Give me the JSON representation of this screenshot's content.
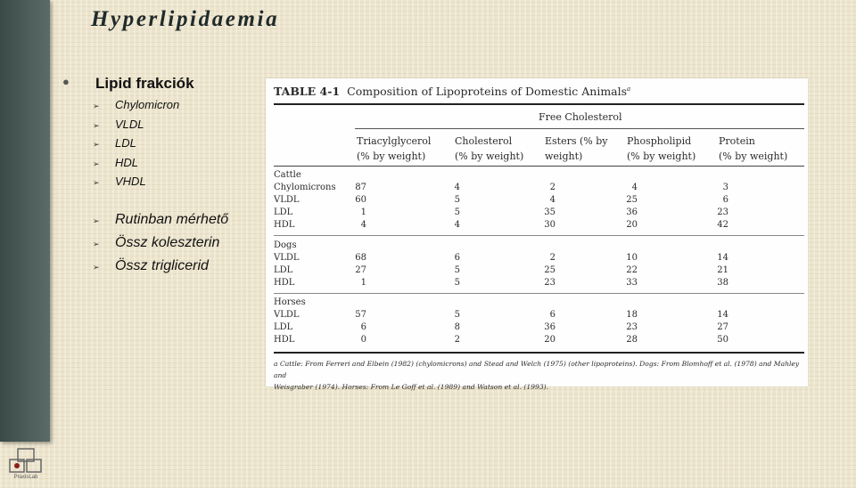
{
  "slide": {
    "title": "Hyperlipidaemia",
    "main_bullet": "Lipid frakciók",
    "sub_items": [
      "Chylomicron",
      "VLDL",
      "LDL",
      "HDL",
      "VHDL"
    ],
    "routine_items": [
      "Rutinban mérhető",
      "Össz koleszterin",
      "Össz triglicerid"
    ],
    "logo_text": "PraxisLab"
  },
  "table": {
    "number": "TABLE 4-1",
    "caption": "Composition of Lipoproteins of Domestic Animals",
    "caption_mark": "a",
    "free_cholesterol_header": "Free Cholesterol",
    "columns": [
      [
        "Triacylglycerol",
        "(% by weight)"
      ],
      [
        "Cholesterol",
        "(% by weight)"
      ],
      [
        "Esters (% by",
        "weight)"
      ],
      [
        "Phospholipid",
        "(% by weight)"
      ],
      [
        "Protein",
        "(% by weight)"
      ]
    ],
    "groups": [
      {
        "name": "Cattle",
        "rows": [
          {
            "label": "Chylomicrons",
            "values": [
              "87",
              "4",
              "2",
              "4",
              "3"
            ]
          },
          {
            "label": "VLDL",
            "values": [
              "60",
              "5",
              "4",
              "25",
              "6"
            ]
          },
          {
            "label": "LDL",
            "values": [
              "1",
              "5",
              "35",
              "36",
              "23"
            ]
          },
          {
            "label": "HDL",
            "values": [
              "4",
              "4",
              "30",
              "20",
              "42"
            ]
          }
        ]
      },
      {
        "name": "Dogs",
        "rows": [
          {
            "label": "VLDL",
            "values": [
              "68",
              "6",
              "2",
              "10",
              "14"
            ]
          },
          {
            "label": "LDL",
            "values": [
              "27",
              "5",
              "25",
              "22",
              "21"
            ]
          },
          {
            "label": "HDL",
            "values": [
              "1",
              "5",
              "23",
              "33",
              "38"
            ]
          }
        ]
      },
      {
        "name": "Horses",
        "rows": [
          {
            "label": "VLDL",
            "values": [
              "57",
              "5",
              "6",
              "18",
              "14"
            ]
          },
          {
            "label": "LDL",
            "values": [
              "6",
              "8",
              "36",
              "23",
              "27"
            ]
          },
          {
            "label": "HDL",
            "values": [
              "0",
              "2",
              "20",
              "28",
              "50"
            ]
          }
        ]
      }
    ],
    "footnote_line1": "a Cattle: From Ferreri and Elbein (1982) (chylomicrons) and Stead and Welch (1975) (other lipoproteins). Dogs: From Blomhoff et al. (1978) and Mahley and",
    "footnote_line2": "Weisgraber (1974). Horses: From Le Goff et al. (1989) and Watson et al. (1993)."
  }
}
